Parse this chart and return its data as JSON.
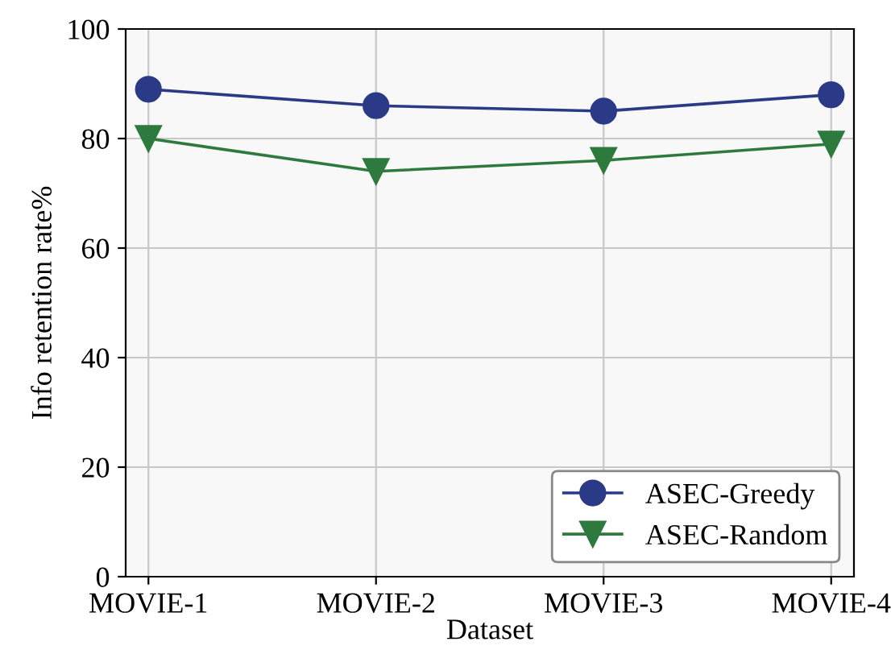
{
  "chart_data": {
    "type": "line",
    "xlabel": "Dataset",
    "ylabel": "Info retention rate%",
    "categories": [
      "MOVIE-1",
      "MOVIE-2",
      "MOVIE-3",
      "MOVIE-4"
    ],
    "series": [
      {
        "name": "ASEC-Greedy",
        "color": "#2b3a87",
        "marker": "circle",
        "values": [
          89,
          86,
          85,
          88
        ]
      },
      {
        "name": "ASEC-Random",
        "color": "#2e7a3e",
        "marker": "triangle",
        "values": [
          80,
          74,
          76,
          79
        ]
      }
    ],
    "ylim": [
      0,
      100
    ],
    "yticks": [
      0,
      20,
      40,
      60,
      80,
      100
    ],
    "grid": true,
    "legend": "bottom right",
    "line_style": "solid"
  }
}
